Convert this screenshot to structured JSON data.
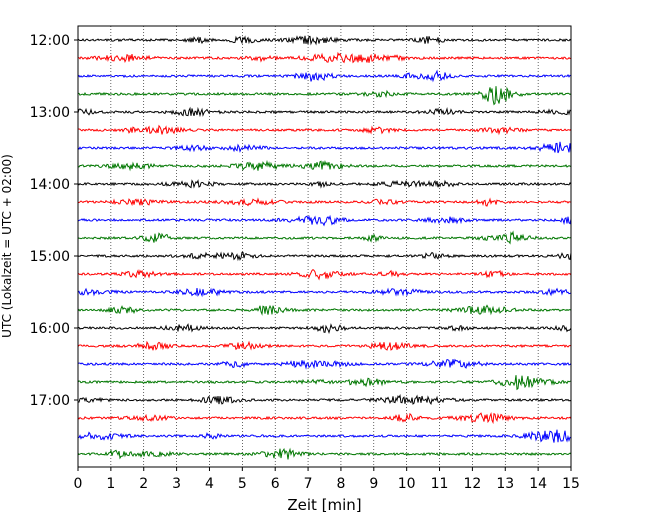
{
  "chart_data": {
    "type": "line",
    "title": "",
    "xlabel": "Zeit  [min]",
    "ylabel": "UTC (Lokalzeit = UTC + 02:00)",
    "xlim": [
      0,
      15
    ],
    "x_ticks": [
      "0",
      "1",
      "2",
      "3",
      "4",
      "5",
      "6",
      "7",
      "8",
      "9",
      "10",
      "11",
      "12",
      "13",
      "14",
      "15"
    ],
    "y_ticks": [
      "12:00",
      "13:00",
      "14:00",
      "15:00",
      "16:00",
      "17:00"
    ],
    "grid_x": true,
    "grid_style": "dotted",
    "row_interval_min": 15,
    "start_time": "12:00",
    "end_time": "17:45",
    "trace_colors": [
      "#000000",
      "#ff0000",
      "#0000ff",
      "#007700"
    ],
    "series": [
      {
        "time": "12:00",
        "color": "#000000"
      },
      {
        "time": "12:15",
        "color": "#ff0000"
      },
      {
        "time": "12:30",
        "color": "#0000ff"
      },
      {
        "time": "12:45",
        "color": "#007700"
      },
      {
        "time": "13:00",
        "color": "#000000"
      },
      {
        "time": "13:15",
        "color": "#ff0000"
      },
      {
        "time": "13:30",
        "color": "#0000ff"
      },
      {
        "time": "13:45",
        "color": "#007700"
      },
      {
        "time": "14:00",
        "color": "#000000"
      },
      {
        "time": "14:15",
        "color": "#ff0000"
      },
      {
        "time": "14:30",
        "color": "#0000ff"
      },
      {
        "time": "14:45",
        "color": "#007700"
      },
      {
        "time": "15:00",
        "color": "#000000"
      },
      {
        "time": "15:15",
        "color": "#ff0000"
      },
      {
        "time": "15:30",
        "color": "#0000ff"
      },
      {
        "time": "15:45",
        "color": "#007700"
      },
      {
        "time": "16:00",
        "color": "#000000"
      },
      {
        "time": "16:15",
        "color": "#ff0000"
      },
      {
        "time": "16:30",
        "color": "#0000ff"
      },
      {
        "time": "16:45",
        "color": "#007700"
      },
      {
        "time": "17:00",
        "color": "#000000"
      },
      {
        "time": "17:15",
        "color": "#ff0000"
      },
      {
        "time": "17:30",
        "color": "#0000ff"
      },
      {
        "time": "17:45",
        "color": "#007700"
      }
    ]
  }
}
